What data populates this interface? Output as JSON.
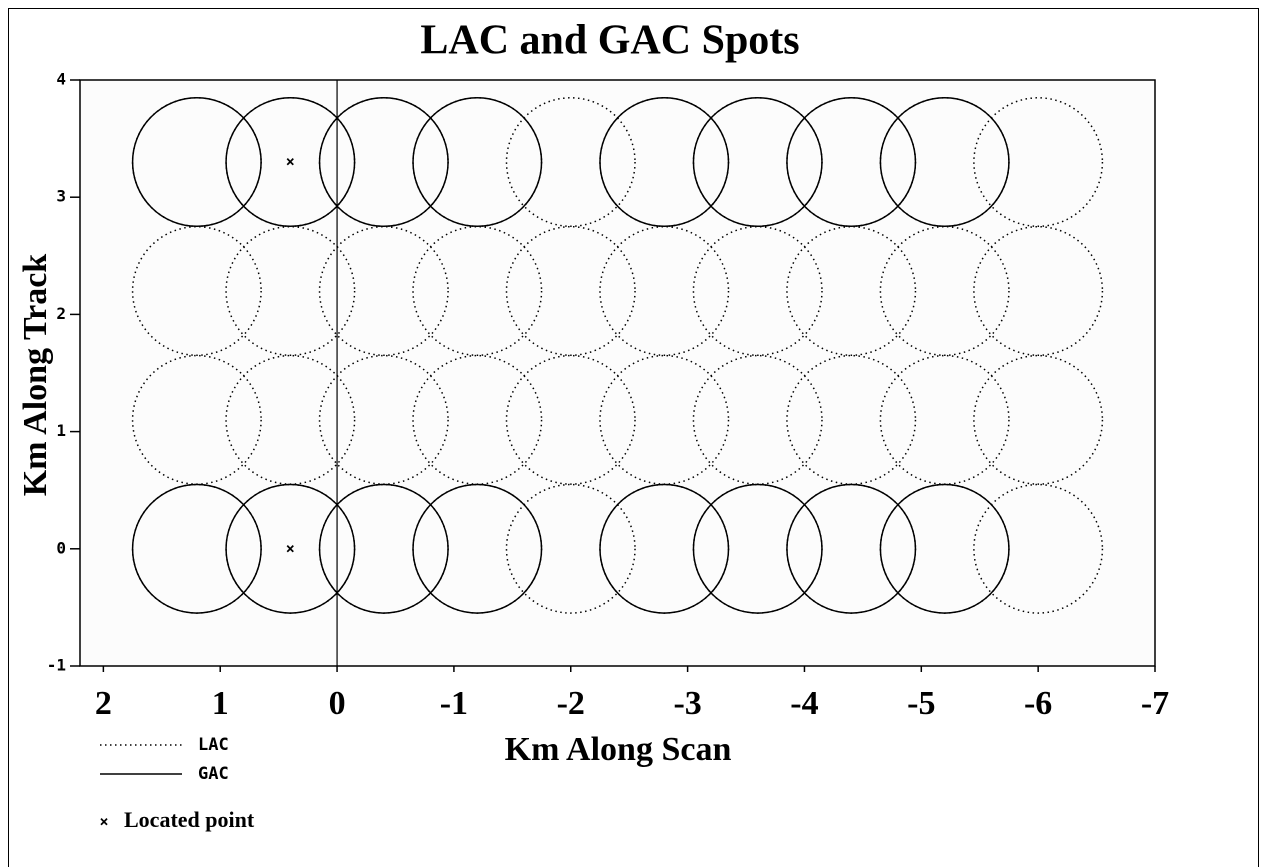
{
  "chart_data": {
    "type": "scatter",
    "title": "LAC and GAC Spots",
    "xlabel": "Km Along Scan",
    "ylabel": "Km Along Track",
    "xlim": [
      2.2,
      -7
    ],
    "ylim": [
      -1,
      4
    ],
    "xticks": [
      2,
      1,
      0,
      -1,
      -2,
      -3,
      -4,
      -5,
      -6,
      -7
    ],
    "yticks": [
      -1,
      0,
      1,
      2,
      3,
      4
    ],
    "reference_line_x": 0,
    "series": [
      {
        "name": "LAC",
        "marker": "dotted-circle",
        "color": "#000000",
        "radius": 0.55,
        "x": [
          1.2,
          0.4,
          -0.4,
          -1.2,
          -2,
          -2.8,
          -3.6,
          -4.4,
          -5.2,
          -6,
          1.2,
          0.4,
          -0.4,
          -1.2,
          -2,
          -2.8,
          -3.6,
          -4.4,
          -5.2,
          -6,
          1.2,
          0.4,
          -0.4,
          -1.2,
          -2,
          -2.8,
          -3.6,
          -4.4,
          -5.2,
          -6,
          1.2,
          0.4,
          -0.4,
          -1.2,
          -2,
          -2.8,
          -3.6,
          -4.4,
          -5.2,
          -6
        ],
        "y": [
          3.3,
          3.3,
          3.3,
          3.3,
          3.3,
          3.3,
          3.3,
          3.3,
          3.3,
          3.3,
          2.2,
          2.2,
          2.2,
          2.2,
          2.2,
          2.2,
          2.2,
          2.2,
          2.2,
          2.2,
          1.1,
          1.1,
          1.1,
          1.1,
          1.1,
          1.1,
          1.1,
          1.1,
          1.1,
          1.1,
          0,
          0,
          0,
          0,
          0,
          0,
          0,
          0,
          0,
          0
        ]
      },
      {
        "name": "GAC",
        "marker": "solid-circle",
        "color": "#000000",
        "radius": 0.55,
        "x": [
          1.2,
          0.4,
          -0.4,
          -1.2,
          -2.8,
          -3.6,
          -4.4,
          -5.2,
          1.2,
          0.4,
          -0.4,
          -1.2,
          -2.8,
          -3.6,
          -4.4,
          -5.2
        ],
        "y": [
          3.3,
          3.3,
          3.3,
          3.3,
          3.3,
          3.3,
          3.3,
          3.3,
          0,
          0,
          0,
          0,
          0,
          0,
          0,
          0
        ]
      },
      {
        "name": "Located point",
        "marker": "x",
        "color": "#000000",
        "x": [
          0.4,
          0.4
        ],
        "y": [
          3.3,
          0
        ]
      }
    ]
  }
}
